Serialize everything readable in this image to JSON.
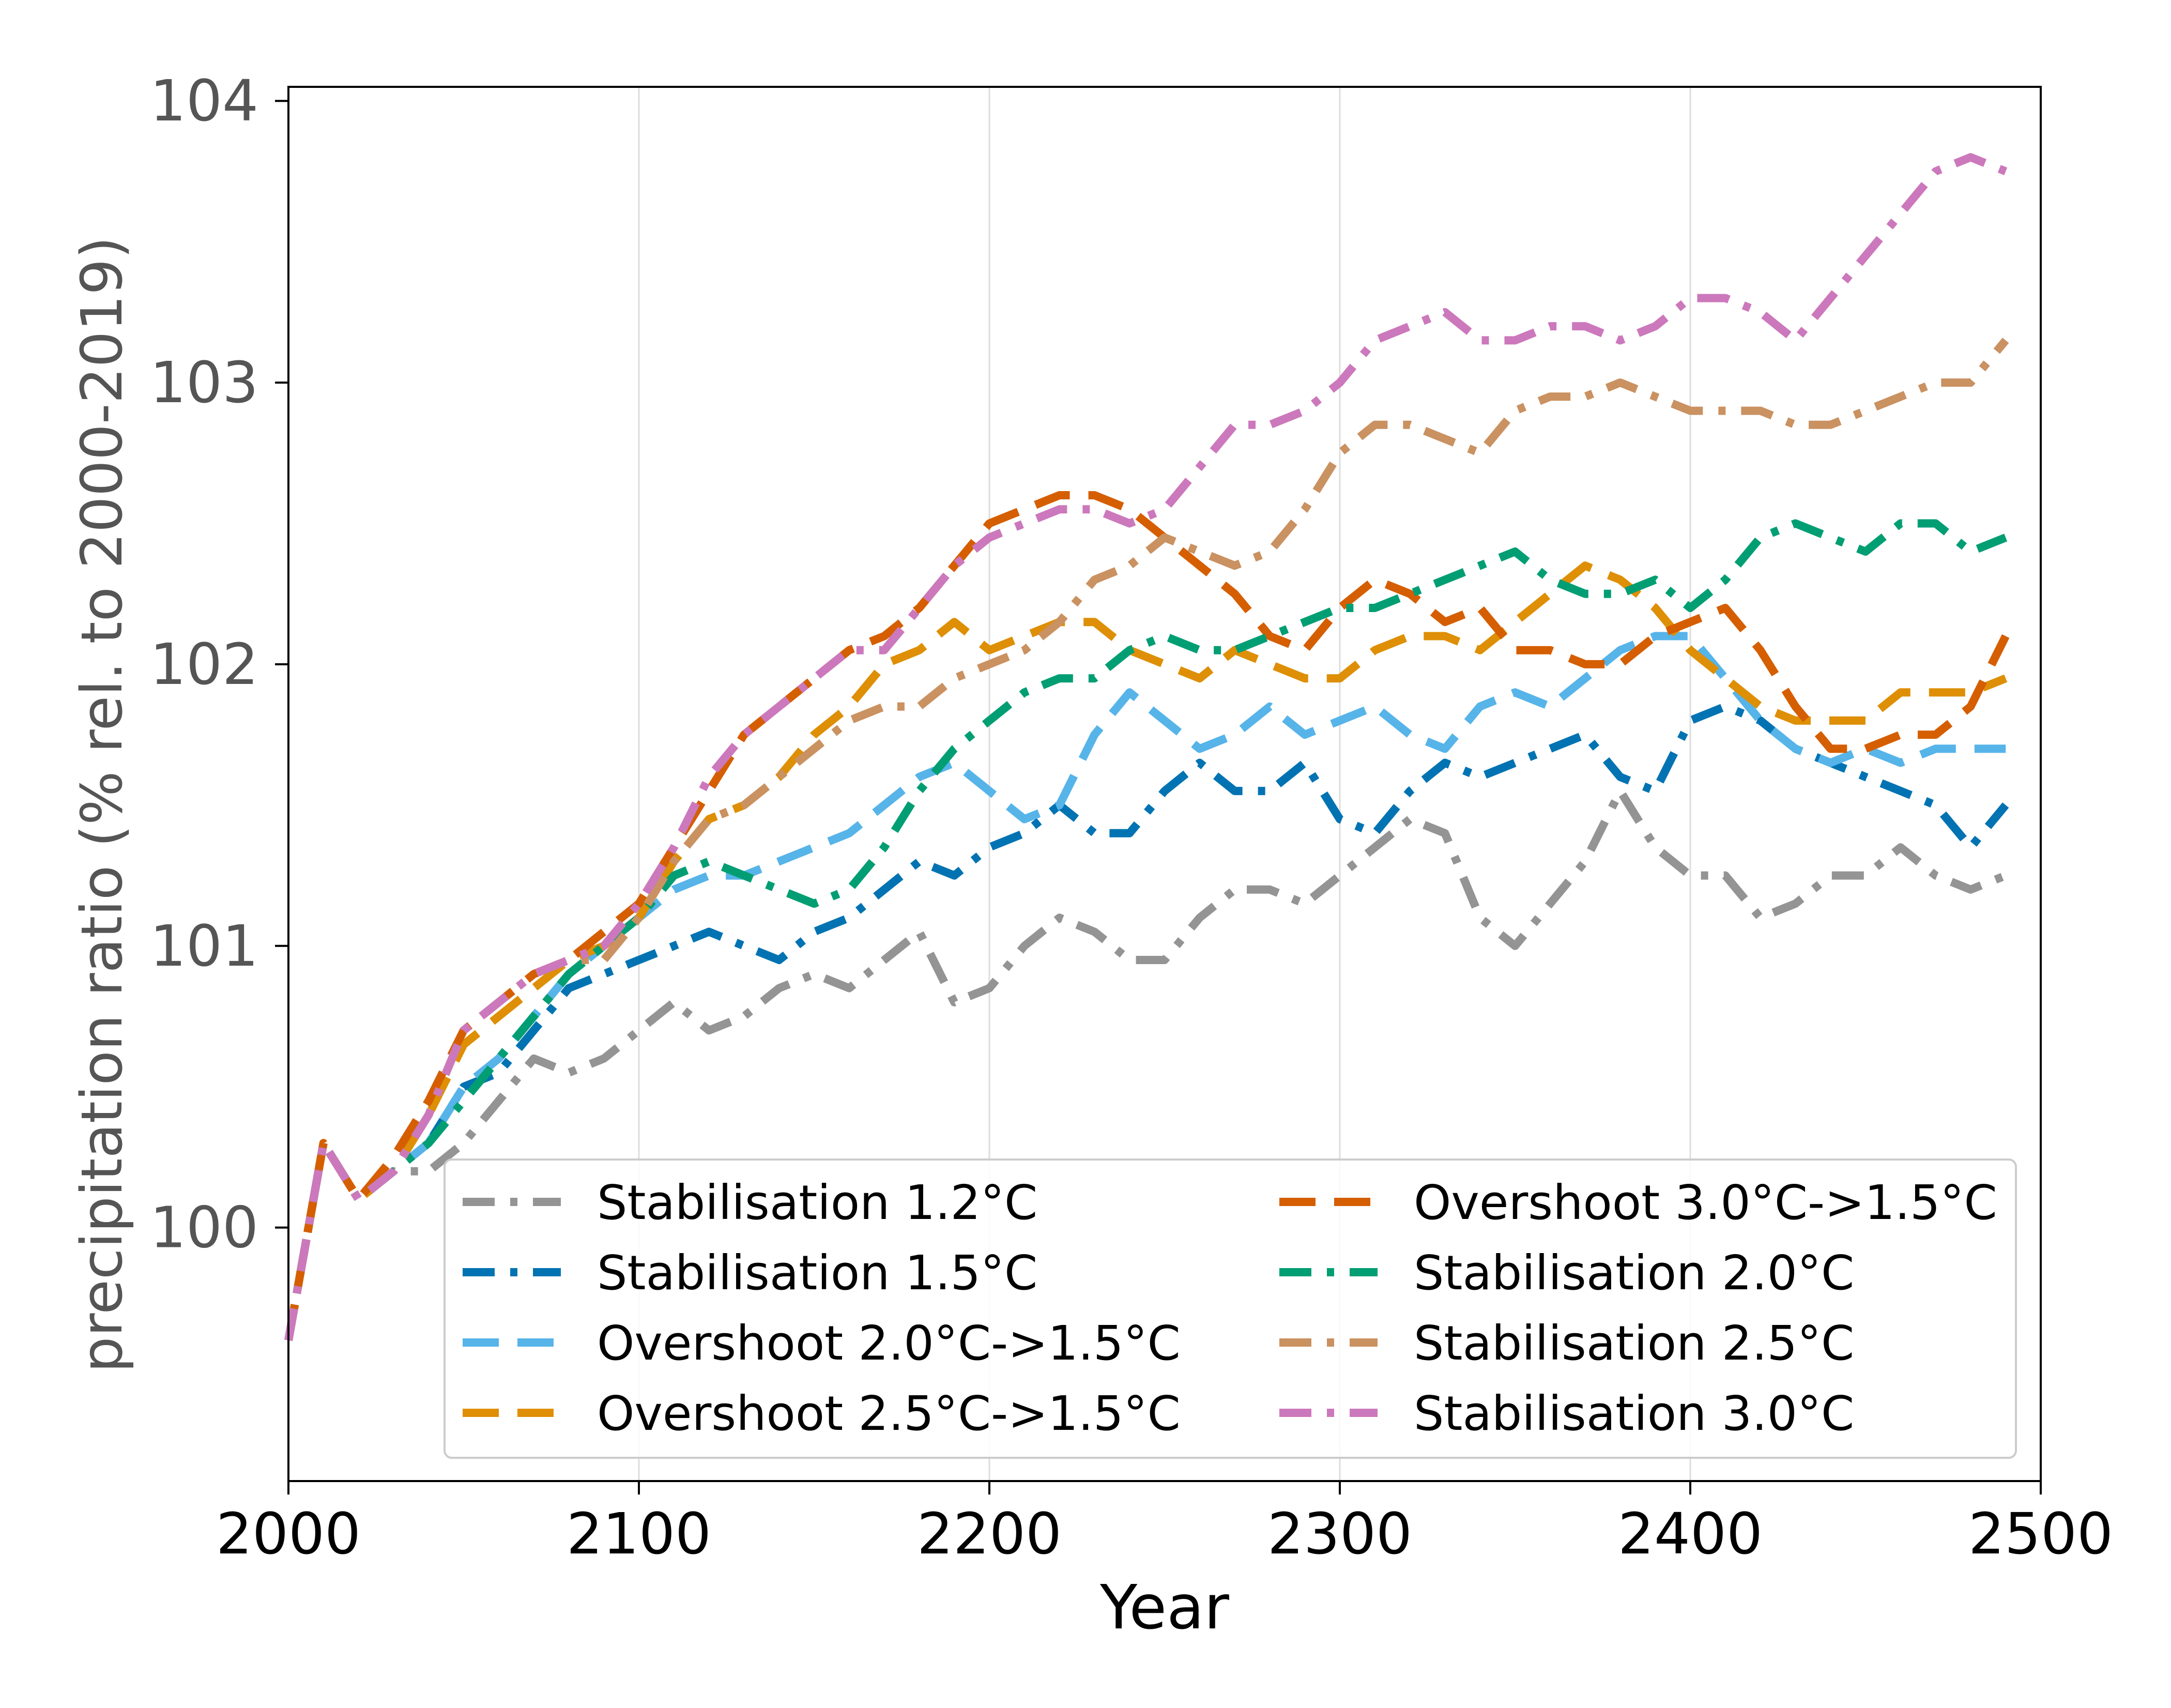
{
  "chart_data": {
    "type": "line",
    "xlabel": "Year",
    "ylabel": "precipitation ratio (% rel. to 2000-2019)",
    "xlim": [
      2000,
      2500
    ],
    "ylim": [
      99.1,
      104.05
    ],
    "xticks": [
      2000,
      2100,
      2200,
      2300,
      2400,
      2500
    ],
    "yticks": [
      100,
      101,
      102,
      103,
      104
    ],
    "grid": "vertical",
    "legend_position": "lower-right",
    "series": [
      {
        "name": "Stabilisation 1.2°C",
        "color": "#949494",
        "dash": "dashdot",
        "x": [
          2000,
          2010,
          2020,
          2030,
          2040,
          2050,
          2060,
          2070,
          2080,
          2090,
          2100,
          2110,
          2120,
          2130,
          2140,
          2150,
          2160,
          2170,
          2180,
          2190,
          2200,
          2210,
          2220,
          2230,
          2240,
          2250,
          2260,
          2270,
          2280,
          2290,
          2300,
          2310,
          2320,
          2330,
          2340,
          2350,
          2360,
          2370,
          2380,
          2390,
          2400,
          2410,
          2420,
          2430,
          2440,
          2450,
          2460,
          2470,
          2480,
          2490
        ],
        "y": [
          99.6,
          100.3,
          100.1,
          100.2,
          100.2,
          100.3,
          100.45,
          100.6,
          100.55,
          100.6,
          100.7,
          100.8,
          100.7,
          100.75,
          100.85,
          100.9,
          100.85,
          100.95,
          101.05,
          100.8,
          100.85,
          101.0,
          101.1,
          101.05,
          100.95,
          100.95,
          101.1,
          101.2,
          101.2,
          101.15,
          101.25,
          101.35,
          101.45,
          101.4,
          101.1,
          101.0,
          101.15,
          101.3,
          101.55,
          101.35,
          101.25,
          101.25,
          101.1,
          101.15,
          101.25,
          101.25,
          101.35,
          101.25,
          101.2,
          101.25
        ]
      },
      {
        "name": "Stabilisation 1.5°C",
        "color": "#0173b2",
        "dash": "dashdot",
        "x": [
          2000,
          2010,
          2020,
          2030,
          2040,
          2050,
          2060,
          2070,
          2080,
          2090,
          2100,
          2110,
          2120,
          2130,
          2140,
          2150,
          2160,
          2170,
          2180,
          2190,
          2200,
          2210,
          2220,
          2230,
          2240,
          2250,
          2260,
          2270,
          2280,
          2290,
          2300,
          2310,
          2320,
          2330,
          2340,
          2350,
          2360,
          2370,
          2380,
          2390,
          2400,
          2410,
          2420,
          2430,
          2440,
          2450,
          2460,
          2470,
          2480,
          2490
        ],
        "y": [
          99.6,
          100.3,
          100.1,
          100.2,
          100.3,
          100.5,
          100.55,
          100.7,
          100.85,
          100.9,
          100.95,
          101.0,
          101.05,
          101.0,
          100.95,
          101.05,
          101.1,
          101.2,
          101.3,
          101.25,
          101.35,
          101.4,
          101.5,
          101.4,
          101.4,
          101.55,
          101.65,
          101.55,
          101.55,
          101.65,
          101.45,
          101.4,
          101.55,
          101.65,
          101.6,
          101.65,
          101.7,
          101.75,
          101.6,
          101.55,
          101.8,
          101.85,
          101.8,
          101.7,
          101.65,
          101.6,
          101.55,
          101.5,
          101.35,
          101.5
        ]
      },
      {
        "name": "Overshoot 2.0°C->1.5°C",
        "color": "#56b4e9",
        "dash": "dashed",
        "x": [
          2000,
          2010,
          2020,
          2030,
          2040,
          2050,
          2060,
          2070,
          2080,
          2090,
          2100,
          2110,
          2120,
          2130,
          2140,
          2150,
          2160,
          2170,
          2180,
          2190,
          2200,
          2210,
          2220,
          2230,
          2240,
          2250,
          2260,
          2270,
          2280,
          2290,
          2300,
          2310,
          2320,
          2330,
          2340,
          2350,
          2360,
          2370,
          2380,
          2390,
          2400,
          2410,
          2420,
          2430,
          2440,
          2450,
          2460,
          2470,
          2480,
          2490
        ],
        "y": [
          99.6,
          100.3,
          100.1,
          100.2,
          100.3,
          100.5,
          100.6,
          100.75,
          100.9,
          101.0,
          101.1,
          101.2,
          101.25,
          101.25,
          101.3,
          101.35,
          101.4,
          101.5,
          101.6,
          101.65,
          101.55,
          101.45,
          101.5,
          101.75,
          101.9,
          101.8,
          101.7,
          101.75,
          101.85,
          101.75,
          101.8,
          101.85,
          101.75,
          101.7,
          101.85,
          101.9,
          101.85,
          101.95,
          102.05,
          102.1,
          102.1,
          101.95,
          101.8,
          101.7,
          101.65,
          101.7,
          101.65,
          101.7,
          101.7,
          101.7
        ]
      },
      {
        "name": "Overshoot 2.5°C->1.5°C",
        "color": "#de8f05",
        "dash": "dashed",
        "x": [
          2000,
          2010,
          2020,
          2030,
          2040,
          2050,
          2060,
          2070,
          2080,
          2090,
          2100,
          2110,
          2120,
          2130,
          2140,
          2150,
          2160,
          2170,
          2180,
          2190,
          2200,
          2210,
          2220,
          2230,
          2240,
          2250,
          2260,
          2270,
          2280,
          2290,
          2300,
          2310,
          2320,
          2330,
          2340,
          2350,
          2360,
          2370,
          2380,
          2390,
          2400,
          2410,
          2420,
          2430,
          2440,
          2450,
          2460,
          2470,
          2480,
          2490
        ],
        "y": [
          99.6,
          100.3,
          100.1,
          100.2,
          100.4,
          100.65,
          100.75,
          100.85,
          100.95,
          101.0,
          101.1,
          101.3,
          101.45,
          101.5,
          101.6,
          101.75,
          101.85,
          102.0,
          102.05,
          102.15,
          102.05,
          102.1,
          102.15,
          102.15,
          102.05,
          102.0,
          101.95,
          102.05,
          102.0,
          101.95,
          101.95,
          102.05,
          102.1,
          102.1,
          102.05,
          102.15,
          102.25,
          102.35,
          102.3,
          102.2,
          102.05,
          101.95,
          101.85,
          101.8,
          101.8,
          101.8,
          101.9,
          101.9,
          101.9,
          101.95
        ]
      },
      {
        "name": "Overshoot 3.0°C->1.5°C",
        "color": "#d55e00",
        "dash": "dashed",
        "x": [
          2000,
          2010,
          2020,
          2030,
          2040,
          2050,
          2060,
          2070,
          2080,
          2090,
          2100,
          2110,
          2120,
          2130,
          2140,
          2150,
          2160,
          2170,
          2180,
          2190,
          2200,
          2210,
          2220,
          2230,
          2240,
          2250,
          2260,
          2270,
          2280,
          2290,
          2300,
          2310,
          2320,
          2330,
          2340,
          2350,
          2360,
          2370,
          2380,
          2390,
          2400,
          2410,
          2420,
          2430,
          2440,
          2450,
          2460,
          2470,
          2480,
          2490
        ],
        "y": [
          99.6,
          100.3,
          100.1,
          100.25,
          100.45,
          100.7,
          100.8,
          100.9,
          100.95,
          101.05,
          101.15,
          101.35,
          101.55,
          101.75,
          101.85,
          101.95,
          102.05,
          102.1,
          102.2,
          102.35,
          102.5,
          102.55,
          102.6,
          102.6,
          102.55,
          102.45,
          102.35,
          102.25,
          102.1,
          102.05,
          102.2,
          102.3,
          102.25,
          102.15,
          102.2,
          102.05,
          102.05,
          102.0,
          102.0,
          102.1,
          102.15,
          102.2,
          102.05,
          101.85,
          101.7,
          101.7,
          101.75,
          101.75,
          101.85,
          102.1
        ]
      },
      {
        "name": "Stabilisation 2.0°C",
        "color": "#029e73",
        "dash": "dashdot",
        "x": [
          2000,
          2010,
          2020,
          2030,
          2040,
          2050,
          2060,
          2070,
          2080,
          2090,
          2100,
          2110,
          2120,
          2130,
          2140,
          2150,
          2160,
          2170,
          2180,
          2190,
          2200,
          2210,
          2220,
          2230,
          2240,
          2250,
          2260,
          2270,
          2280,
          2290,
          2300,
          2310,
          2320,
          2330,
          2340,
          2350,
          2360,
          2370,
          2380,
          2390,
          2400,
          2410,
          2420,
          2430,
          2440,
          2450,
          2460,
          2470,
          2480,
          2490
        ],
        "y": [
          99.6,
          100.3,
          100.1,
          100.2,
          100.3,
          100.45,
          100.6,
          100.75,
          100.9,
          101.0,
          101.1,
          101.25,
          101.3,
          101.25,
          101.2,
          101.15,
          101.2,
          101.35,
          101.55,
          101.7,
          101.8,
          101.9,
          101.95,
          101.95,
          102.05,
          102.1,
          102.05,
          102.05,
          102.1,
          102.15,
          102.2,
          102.2,
          102.25,
          102.3,
          102.35,
          102.4,
          102.3,
          102.25,
          102.25,
          102.3,
          102.2,
          102.3,
          102.45,
          102.5,
          102.45,
          102.4,
          102.5,
          102.5,
          102.4,
          102.45
        ]
      },
      {
        "name": "Stabilisation 2.5°C",
        "color": "#ca9161",
        "dash": "dashdot",
        "x": [
          2000,
          2010,
          2020,
          2030,
          2040,
          2050,
          2060,
          2070,
          2080,
          2090,
          2100,
          2110,
          2120,
          2130,
          2140,
          2150,
          2160,
          2170,
          2180,
          2190,
          2200,
          2210,
          2220,
          2230,
          2240,
          2250,
          2260,
          2270,
          2280,
          2290,
          2300,
          2310,
          2320,
          2330,
          2340,
          2350,
          2360,
          2370,
          2380,
          2390,
          2400,
          2410,
          2420,
          2430,
          2440,
          2450,
          2460,
          2470,
          2480,
          2490
        ],
        "y": [
          99.6,
          100.3,
          100.1,
          100.2,
          100.4,
          100.7,
          100.8,
          100.9,
          100.95,
          100.95,
          101.1,
          101.3,
          101.45,
          101.5,
          101.6,
          101.7,
          101.8,
          101.85,
          101.85,
          101.95,
          102.0,
          102.05,
          102.15,
          102.3,
          102.35,
          102.45,
          102.4,
          102.35,
          102.4,
          102.55,
          102.75,
          102.85,
          102.85,
          102.8,
          102.75,
          102.9,
          102.95,
          102.95,
          103.0,
          102.95,
          102.9,
          102.9,
          102.9,
          102.85,
          102.85,
          102.9,
          102.95,
          103.0,
          103.0,
          103.15
        ]
      },
      {
        "name": "Stabilisation 3.0°C",
        "color": "#cc78bc",
        "dash": "dashdot",
        "x": [
          2000,
          2010,
          2020,
          2030,
          2040,
          2050,
          2060,
          2070,
          2080,
          2090,
          2100,
          2110,
          2120,
          2130,
          2140,
          2150,
          2160,
          2170,
          2180,
          2190,
          2200,
          2210,
          2220,
          2230,
          2240,
          2250,
          2260,
          2270,
          2280,
          2290,
          2300,
          2310,
          2320,
          2330,
          2340,
          2350,
          2360,
          2370,
          2380,
          2390,
          2400,
          2410,
          2420,
          2430,
          2440,
          2450,
          2460,
          2470,
          2480,
          2490
        ],
        "y": [
          99.6,
          100.3,
          100.1,
          100.2,
          100.4,
          100.7,
          100.8,
          100.9,
          100.95,
          101.0,
          101.15,
          101.35,
          101.6,
          101.75,
          101.85,
          101.95,
          102.05,
          102.05,
          102.2,
          102.35,
          102.45,
          102.5,
          102.55,
          102.55,
          102.5,
          102.55,
          102.7,
          102.85,
          102.85,
          102.9,
          103.0,
          103.15,
          103.2,
          103.25,
          103.15,
          103.15,
          103.2,
          103.2,
          103.15,
          103.2,
          103.3,
          103.3,
          103.25,
          103.15,
          103.3,
          103.45,
          103.6,
          103.75,
          103.8,
          103.75
        ]
      }
    ]
  }
}
